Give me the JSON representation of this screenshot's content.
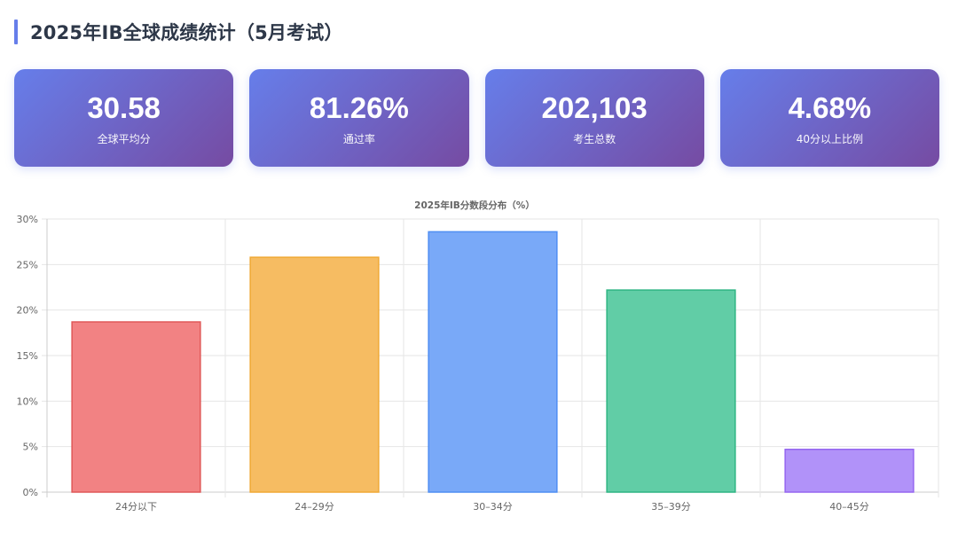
{
  "header": {
    "title": "2025年IB全球成绩统计（5月考试）"
  },
  "stats": [
    {
      "value": "30.58",
      "label": "全球平均分"
    },
    {
      "value": "81.26%",
      "label": "通过率"
    },
    {
      "value": "202,103",
      "label": "考生总数"
    },
    {
      "value": "4.68%",
      "label": "40分以上比例"
    }
  ],
  "colors": {
    "accent": "#667eea",
    "card_gradient": [
      "#667eea",
      "#764ba2"
    ]
  },
  "chart_data": {
    "type": "bar",
    "title": "2025年IB分数段分布（%）",
    "categories": [
      "24分以下",
      "24–29分",
      "30–34分",
      "35–39分",
      "40–45分"
    ],
    "values": [
      18.7,
      25.8,
      28.6,
      22.2,
      4.7
    ],
    "bar_fills": [
      "#f28283",
      "#f6bc62",
      "#79a9f8",
      "#61cda6",
      "#b192f9"
    ],
    "bar_strokes": [
      "#e05858",
      "#f0a935",
      "#4f8ef3",
      "#2fb583",
      "#9566f0"
    ],
    "ylim": [
      0,
      30
    ],
    "yticks": [
      0,
      5,
      10,
      15,
      20,
      25,
      30
    ],
    "ytick_labels": [
      "0%",
      "5%",
      "10%",
      "15%",
      "20%",
      "25%",
      "30%"
    ],
    "xlabel": "",
    "ylabel": "",
    "grid": true,
    "legend": false
  }
}
